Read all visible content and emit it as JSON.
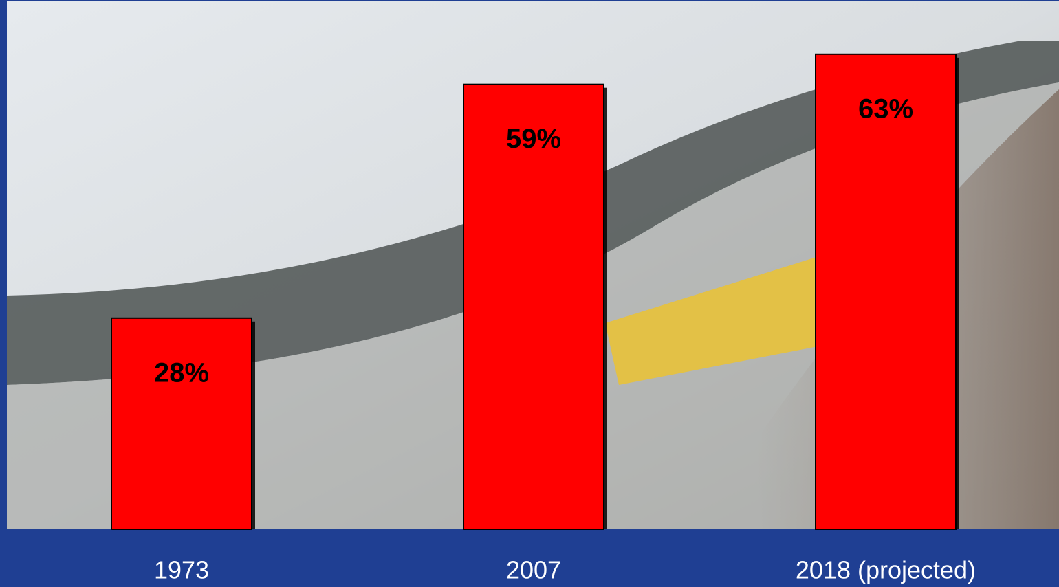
{
  "chart_data": {
    "type": "bar",
    "categories": [
      "1973",
      "2007",
      "2018 (projected)"
    ],
    "values": [
      28,
      59,
      63
    ],
    "value_labels": [
      "28%",
      "59%",
      "63%"
    ],
    "color": "#ff0000",
    "ylim": [
      0,
      70
    ]
  }
}
